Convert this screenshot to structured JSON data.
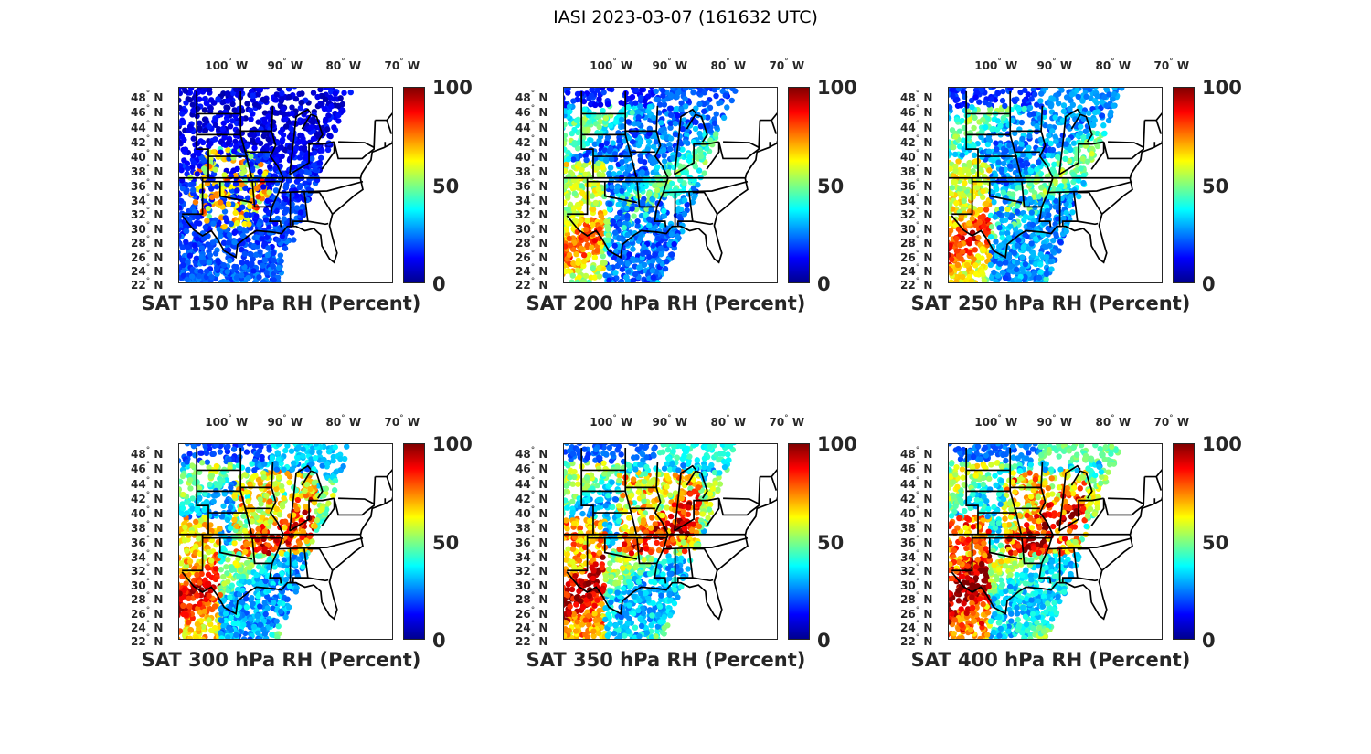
{
  "figure_title": "IASI 2023-03-07 (161632 UTC)",
  "degree_symbol": "°",
  "lon_ticks": [
    {
      "num": "100",
      "hem": "W",
      "lon": -100
    },
    {
      "num": "90",
      "hem": "W",
      "lon": -90
    },
    {
      "num": "80",
      "hem": "W",
      "lon": -80
    },
    {
      "num": "70",
      "hem": "W",
      "lon": -70
    }
  ],
  "lat_ticks": [
    {
      "num": "48",
      "hem": "N",
      "lat": 48
    },
    {
      "num": "46",
      "hem": "N",
      "lat": 46
    },
    {
      "num": "44",
      "hem": "N",
      "lat": 44
    },
    {
      "num": "42",
      "hem": "N",
      "lat": 42
    },
    {
      "num": "40",
      "hem": "N",
      "lat": 40
    },
    {
      "num": "38",
      "hem": "N",
      "lat": 38
    },
    {
      "num": "36",
      "hem": "N",
      "lat": 36
    },
    {
      "num": "34",
      "hem": "N",
      "lat": 34
    },
    {
      "num": "32",
      "hem": "N",
      "lat": 32
    },
    {
      "num": "30",
      "hem": "N",
      "lat": 30
    },
    {
      "num": "28",
      "hem": "N",
      "lat": 28
    },
    {
      "num": "26",
      "hem": "N",
      "lat": 26
    },
    {
      "num": "24",
      "hem": "N",
      "lat": 24
    },
    {
      "num": "22",
      "hem": "N",
      "lat": 22
    }
  ],
  "colorbar": {
    "ticks": [
      "100",
      "50",
      "0"
    ],
    "range": [
      0,
      100
    ],
    "colormap": "jet"
  },
  "panels": [
    {
      "title": "SAT 150 hPa RH (Percent)",
      "pressure_hPa": 150
    },
    {
      "title": "SAT 200 hPa RH (Percent)",
      "pressure_hPa": 200
    },
    {
      "title": "SAT 250 hPa RH (Percent)",
      "pressure_hPa": 250
    },
    {
      "title": "SAT 300 hPa RH (Percent)",
      "pressure_hPa": 300
    },
    {
      "title": "SAT 350 hPa RH (Percent)",
      "pressure_hPa": 350
    },
    {
      "title": "SAT 400 hPa RH (Percent)",
      "pressure_hPa": 400
    }
  ]
}
